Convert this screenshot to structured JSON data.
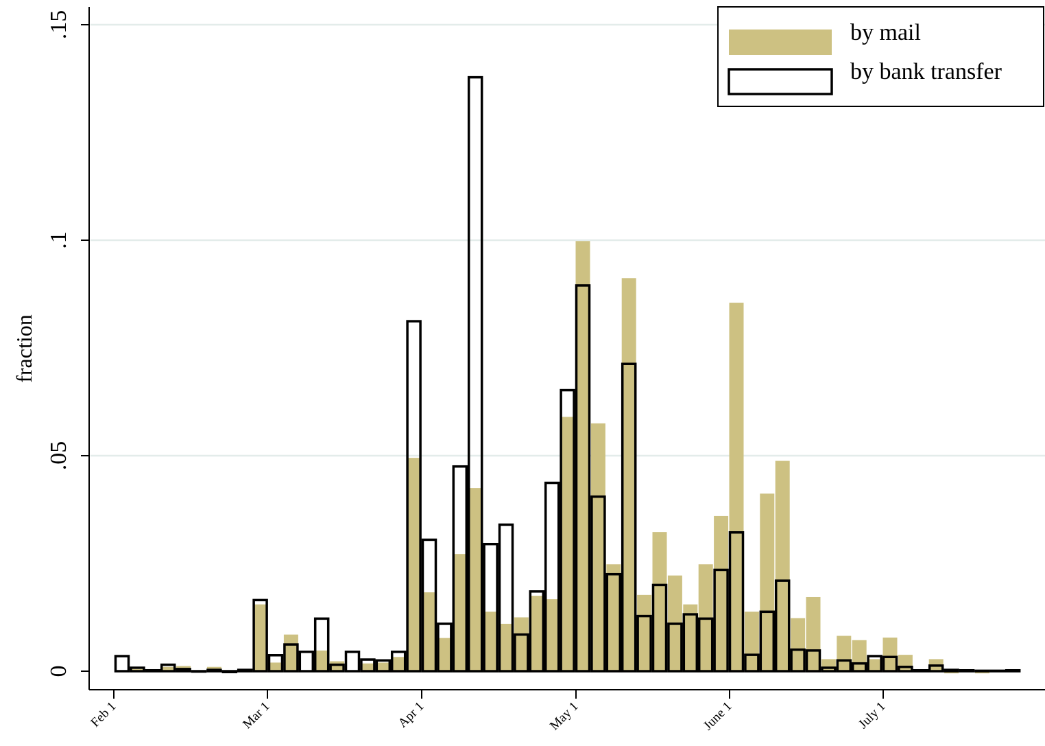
{
  "chart_data": {
    "type": "bar",
    "xlabel": "",
    "ylabel": "fraction",
    "ylim": [
      0,
      0.15
    ],
    "yticks": [
      {
        "value": 0,
        "label": "0"
      },
      {
        "value": 0.05,
        "label": ".05"
      },
      {
        "value": 0.1,
        "label": ".1"
      },
      {
        "value": 0.15,
        "label": ".15"
      }
    ],
    "xticks": [
      {
        "week": 0,
        "label": "Feb 1"
      },
      {
        "week": 4,
        "label": "Mar 1"
      },
      {
        "week": 8,
        "label": "Apr 1"
      },
      {
        "week": 12,
        "label": "May 1"
      },
      {
        "week": 16,
        "label": "June 1"
      },
      {
        "week": 20,
        "label": "July 1"
      }
    ],
    "grid": true,
    "legend_position": "top-right",
    "series": [
      {
        "name": "by mail",
        "style": "filled",
        "color": "#cdc182",
        "values": [
          0.0,
          0.0005,
          0.0002,
          0.001,
          0.0012,
          0,
          0.001,
          -0.0003,
          0.0,
          0.0155,
          0.002,
          0.0085,
          0.0,
          0.0048,
          0.0023,
          0.0,
          0.0018,
          0.002,
          0.0033,
          0.0495,
          0.0183,
          0.0077,
          0.0272,
          0.0425,
          0.0138,
          0.011,
          0.0125,
          0.0175,
          0.0167,
          0.059,
          0.0998,
          0.0575,
          0.0248,
          0.0912,
          0.0177,
          0.0323,
          0.0222,
          0.0155,
          0.0248,
          0.036,
          0.0855,
          0.0138,
          0.0412,
          0.0488,
          0.0123,
          0.0172,
          0.0028,
          0.0082,
          0.0072,
          0.0028,
          0.0078,
          0.0038,
          0.0003,
          0.0028,
          -0.0005,
          0.0,
          -0.0005,
          -0.0002,
          0.0
        ]
      },
      {
        "name": "by bank transfer",
        "style": "outline",
        "color": "#000000",
        "values": [
          0.0035,
          0.0008,
          0.0002,
          0.0015,
          0.0005,
          0,
          0.0003,
          -0.0002,
          0.0003,
          0.0165,
          0.0037,
          0.0062,
          0.0045,
          0.0122,
          0.0015,
          0.0045,
          0.0027,
          0.0025,
          0.0045,
          0.0812,
          0.0305,
          0.011,
          0.0475,
          0.1378,
          0.0295,
          0.034,
          0.0085,
          0.0185,
          0.0437,
          0.0652,
          0.0895,
          0.0405,
          0.0225,
          0.0713,
          0.0128,
          0.02,
          0.011,
          0.0132,
          0.0122,
          0.0235,
          0.0322,
          0.0038,
          0.0138,
          0.021,
          0.005,
          0.0048,
          0.0008,
          0.0025,
          0.0018,
          0.0035,
          0.0033,
          0.001,
          0.0002,
          0.0013,
          0.0003,
          0.0002,
          0.0001,
          0.0001,
          0.0002
        ]
      }
    ]
  }
}
